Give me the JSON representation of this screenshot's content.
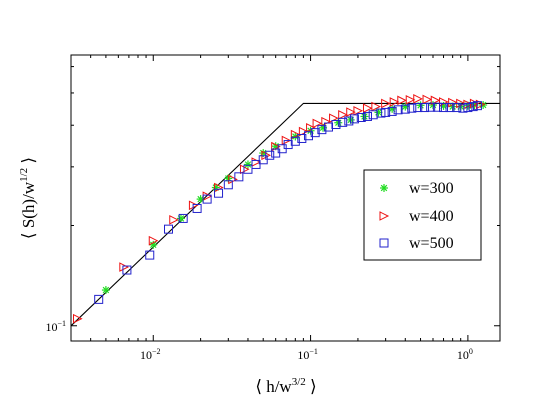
{
  "chart_data": {
    "type": "scatter",
    "xscale": "log",
    "yscale": "log",
    "xlim": [
      0.003,
      1.6
    ],
    "ylim": [
      0.09,
      0.65
    ],
    "grid": false,
    "legend_position": "right",
    "xlabel_parts": [
      "⟨ h/w",
      "3/2",
      " ⟩"
    ],
    "ylabel_parts": [
      "⟨ S(h)/w",
      "1/2",
      " ⟩"
    ],
    "xticks": [
      {
        "value": 0.01,
        "base": "10",
        "exp": "−2"
      },
      {
        "value": 0.1,
        "base": "10",
        "exp": "−1"
      },
      {
        "value": 1,
        "base": "10",
        "exp": "0"
      }
    ],
    "yticks": [
      {
        "value": 0.1,
        "base": "10",
        "exp": "−1"
      }
    ],
    "colors": {
      "w300": "#22dd22",
      "w400": "#ee1111",
      "w500": "#2222cc",
      "line": "#000000",
      "axes": "#000000"
    },
    "reference_line": [
      [
        0.003,
        0.1
      ],
      [
        0.09,
        0.465
      ],
      [
        1.6,
        0.465
      ]
    ],
    "series": [
      {
        "name": "w=300",
        "marker": "star",
        "color": "#22dd22",
        "points": [
          [
            0.005,
            0.128
          ],
          [
            0.01,
            0.175
          ],
          [
            0.015,
            0.21
          ],
          [
            0.02,
            0.24
          ],
          [
            0.025,
            0.26
          ],
          [
            0.03,
            0.277
          ],
          [
            0.04,
            0.305
          ],
          [
            0.05,
            0.33
          ],
          [
            0.06,
            0.346
          ],
          [
            0.08,
            0.37
          ],
          [
            0.1,
            0.385
          ],
          [
            0.12,
            0.393
          ],
          [
            0.15,
            0.407
          ],
          [
            0.18,
            0.415
          ],
          [
            0.22,
            0.425
          ],
          [
            0.27,
            0.437
          ],
          [
            0.33,
            0.448
          ],
          [
            0.4,
            0.455
          ],
          [
            0.5,
            0.459
          ],
          [
            0.6,
            0.46
          ],
          [
            0.7,
            0.457
          ],
          [
            0.8,
            0.455
          ],
          [
            0.9,
            0.455
          ],
          [
            1.0,
            0.458
          ],
          [
            1.1,
            0.46
          ],
          [
            1.25,
            0.46
          ]
        ]
      },
      {
        "name": "w=400",
        "marker": "triangle-right",
        "color": "#ee1111",
        "points": [
          [
            0.0033,
            0.105
          ],
          [
            0.0065,
            0.15
          ],
          [
            0.01,
            0.18
          ],
          [
            0.0135,
            0.208
          ],
          [
            0.018,
            0.23
          ],
          [
            0.022,
            0.245
          ],
          [
            0.026,
            0.26
          ],
          [
            0.032,
            0.275
          ],
          [
            0.038,
            0.295
          ],
          [
            0.045,
            0.31
          ],
          [
            0.052,
            0.325
          ],
          [
            0.06,
            0.345
          ],
          [
            0.07,
            0.36
          ],
          [
            0.08,
            0.375
          ],
          [
            0.09,
            0.383
          ],
          [
            0.1,
            0.393
          ],
          [
            0.11,
            0.405
          ],
          [
            0.125,
            0.41
          ],
          [
            0.14,
            0.42
          ],
          [
            0.16,
            0.43
          ],
          [
            0.18,
            0.438
          ],
          [
            0.2,
            0.442
          ],
          [
            0.23,
            0.45
          ],
          [
            0.26,
            0.455
          ],
          [
            0.3,
            0.465
          ],
          [
            0.34,
            0.47
          ],
          [
            0.38,
            0.475
          ],
          [
            0.43,
            0.477
          ],
          [
            0.48,
            0.48
          ],
          [
            0.55,
            0.478
          ],
          [
            0.62,
            0.475
          ],
          [
            0.7,
            0.47
          ],
          [
            0.8,
            0.468
          ],
          [
            0.9,
            0.465
          ],
          [
            1.0,
            0.462
          ],
          [
            1.1,
            0.465
          ],
          [
            1.2,
            0.462
          ]
        ]
      },
      {
        "name": "w=500",
        "marker": "square",
        "color": "#2222cc",
        "points": [
          [
            0.0045,
            0.12
          ],
          [
            0.0068,
            0.147
          ],
          [
            0.0095,
            0.163
          ],
          [
            0.0125,
            0.195
          ],
          [
            0.0155,
            0.21
          ],
          [
            0.019,
            0.225
          ],
          [
            0.022,
            0.24
          ],
          [
            0.026,
            0.25
          ],
          [
            0.03,
            0.265
          ],
          [
            0.035,
            0.28
          ],
          [
            0.04,
            0.295
          ],
          [
            0.045,
            0.305
          ],
          [
            0.05,
            0.315
          ],
          [
            0.055,
            0.325
          ],
          [
            0.06,
            0.33
          ],
          [
            0.066,
            0.34
          ],
          [
            0.072,
            0.35
          ],
          [
            0.08,
            0.358
          ],
          [
            0.088,
            0.365
          ],
          [
            0.097,
            0.372
          ],
          [
            0.107,
            0.38
          ],
          [
            0.118,
            0.388
          ],
          [
            0.13,
            0.395
          ],
          [
            0.145,
            0.402
          ],
          [
            0.16,
            0.408
          ],
          [
            0.175,
            0.412
          ],
          [
            0.19,
            0.418
          ],
          [
            0.21,
            0.422
          ],
          [
            0.23,
            0.425
          ],
          [
            0.25,
            0.43
          ],
          [
            0.28,
            0.435
          ],
          [
            0.3,
            0.437
          ],
          [
            0.33,
            0.44
          ],
          [
            0.36,
            0.445
          ],
          [
            0.4,
            0.447
          ],
          [
            0.44,
            0.45
          ],
          [
            0.48,
            0.452
          ],
          [
            0.53,
            0.452
          ],
          [
            0.58,
            0.453
          ],
          [
            0.64,
            0.453
          ],
          [
            0.7,
            0.452
          ],
          [
            0.77,
            0.452
          ],
          [
            0.85,
            0.452
          ],
          [
            0.93,
            0.45
          ],
          [
            1.0,
            0.452
          ],
          [
            1.08,
            0.455
          ],
          [
            1.15,
            0.458
          ]
        ]
      }
    ]
  }
}
